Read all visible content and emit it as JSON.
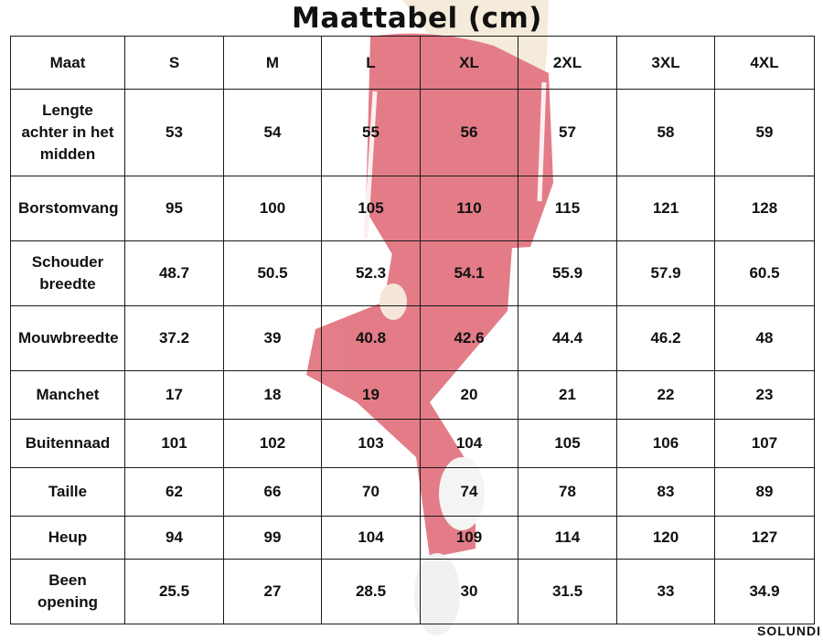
{
  "title": "Maattabel (cm)",
  "brand": "SOLUNDI",
  "colors": {
    "garment": "#d22c3d",
    "border": "#1a1a1a",
    "text": "#111111"
  },
  "header": [
    "Maat",
    "S",
    "M",
    "L",
    "XL",
    "2XL",
    "3XL",
    "4XL"
  ],
  "rows": [
    {
      "label": "Lengte achter in het midden",
      "values": [
        "53",
        "54",
        "55",
        "56",
        "57",
        "58",
        "59"
      ]
    },
    {
      "label": "Borstomvang",
      "values": [
        "95",
        "100",
        "105",
        "110",
        "115",
        "121",
        "128"
      ]
    },
    {
      "label": "Schouder breedte",
      "values": [
        "48.7",
        "50.5",
        "52.3",
        "54.1",
        "55.9",
        "57.9",
        "60.5"
      ]
    },
    {
      "label": "Mouwbreedte",
      "values": [
        "37.2",
        "39",
        "40.8",
        "42.6",
        "44.4",
        "46.2",
        "48"
      ]
    },
    {
      "label": "Manchet",
      "values": [
        "17",
        "18",
        "19",
        "20",
        "21",
        "22",
        "23"
      ]
    },
    {
      "label": "Buitennaad",
      "values": [
        "101",
        "102",
        "103",
        "104",
        "105",
        "106",
        "107"
      ]
    },
    {
      "label": "Taille",
      "values": [
        "62",
        "66",
        "70",
        "74",
        "78",
        "83",
        "89"
      ]
    },
    {
      "label": "Heup",
      "values": [
        "94",
        "99",
        "104",
        "109",
        "114",
        "120",
        "127"
      ]
    },
    {
      "label": "Been opening",
      "values": [
        "25.5",
        "27",
        "28.5",
        "30",
        "31.5",
        "33",
        "34.9"
      ]
    }
  ]
}
